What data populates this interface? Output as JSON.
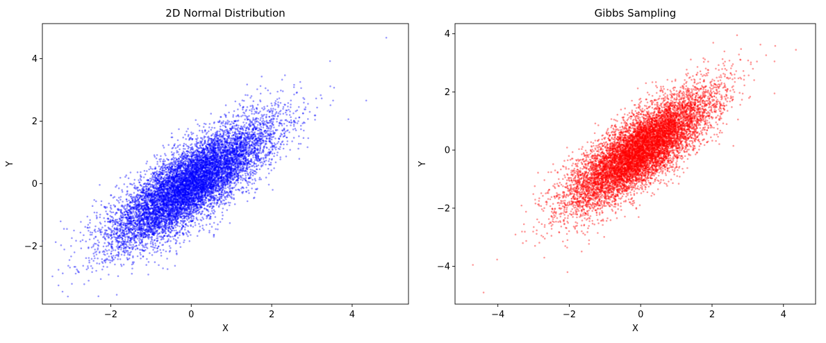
{
  "chart_data": [
    {
      "type": "scatter",
      "title": "2D Normal Distribution",
      "xlabel": "X",
      "ylabel": "Y",
      "xlim": [
        -3.7,
        5.4
      ],
      "ylim": [
        -3.85,
        5.12
      ],
      "xticks": [
        -2,
        0,
        2,
        4
      ],
      "yticks": [
        -2,
        0,
        2,
        4
      ],
      "xtick_labels": [
        "−2",
        "0",
        "2",
        "4"
      ],
      "ytick_labels": [
        "−2",
        "0",
        "2",
        "4"
      ],
      "grid": false,
      "legend": "none",
      "point_color": "#0000ff",
      "point_alpha": 0.4,
      "n_points": 10000,
      "mean": [
        0,
        0
      ],
      "std": [
        1,
        1
      ],
      "correlation": 0.8,
      "extreme_points": [
        [
          4.85,
          4.67
        ],
        [
          3.45,
          3.92
        ],
        [
          4.35,
          2.66
        ],
        [
          3.55,
          3.07
        ],
        [
          -3.3,
          -3.25
        ],
        [
          -3.2,
          -3.45
        ],
        [
          -2.55,
          -3.1
        ],
        [
          -1.85,
          -3.55
        ],
        [
          -3.3,
          -2.75
        ]
      ]
    },
    {
      "type": "scatter",
      "title": "Gibbs Sampling",
      "xlabel": "X",
      "ylabel": "Y",
      "xlim": [
        -5.2,
        4.9
      ],
      "ylim": [
        -5.3,
        4.35
      ],
      "xticks": [
        -4,
        -2,
        0,
        2,
        4
      ],
      "yticks": [
        -4,
        -2,
        0,
        2,
        4
      ],
      "xtick_labels": [
        "−4",
        "−2",
        "0",
        "2",
        "4"
      ],
      "ytick_labels": [
        "−4",
        "−2",
        "0",
        "2",
        "4"
      ],
      "grid": false,
      "legend": "none",
      "point_color": "#ff0000",
      "point_alpha": 0.4,
      "n_points": 10000,
      "mean": [
        0,
        0
      ],
      "std": [
        1,
        1
      ],
      "correlation": 0.8,
      "extreme_points": [
        [
          -4.7,
          -3.95
        ],
        [
          -4.4,
          -4.9
        ],
        [
          -2.05,
          -4.2
        ],
        [
          4.35,
          3.45
        ],
        [
          2.7,
          3.95
        ],
        [
          3.75,
          1.95
        ],
        [
          3.75,
          3.05
        ],
        [
          -3.3,
          -3.2
        ],
        [
          -2.7,
          -3.7
        ]
      ]
    }
  ]
}
